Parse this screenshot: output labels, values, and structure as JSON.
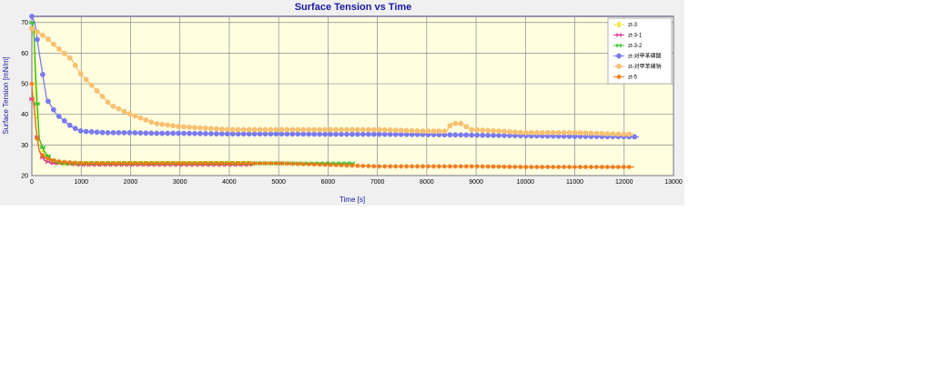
{
  "chart_data": {
    "type": "line",
    "title": "Surface Tension vs Time",
    "xlabel": "Time [s]",
    "ylabel": "Surface Tension [mN/m]",
    "xlim": [
      0,
      13000
    ],
    "ylim": [
      20,
      72
    ],
    "x_ticks": [
      0,
      1000,
      2000,
      3000,
      4000,
      5000,
      6000,
      7000,
      8000,
      9000,
      10000,
      11000,
      12000,
      13000
    ],
    "y_ticks": [
      20,
      30,
      40,
      50,
      60,
      70
    ],
    "grid": true,
    "legend_position": "top-right",
    "series": [
      {
        "name": "zt-3",
        "color": "#e8e020",
        "marker": "hourglass",
        "x": [
          0,
          40,
          80,
          150,
          250,
          400,
          600,
          1000,
          1500,
          2000,
          2500,
          3000,
          3500,
          4000,
          4500
        ],
        "y": [
          68,
          66,
          45,
          32,
          27,
          25,
          24,
          24,
          24,
          24,
          24,
          24,
          24,
          24,
          24
        ]
      },
      {
        "name": "zt-3-1",
        "color": "#e03090",
        "marker": "bowtie",
        "x": [
          0,
          40,
          80,
          150,
          250,
          400,
          600,
          1000,
          1500,
          2000,
          2500,
          3000,
          3500,
          4000,
          4500
        ],
        "y": [
          45,
          44,
          36,
          28,
          25,
          24,
          24,
          23.5,
          23.5,
          23.5,
          23.5,
          23.5,
          23.5,
          23.5,
          23.5
        ]
      },
      {
        "name": "zt-3-2",
        "color": "#30c020",
        "marker": "bowtie",
        "x": [
          0,
          40,
          80,
          150,
          250,
          400,
          600,
          1000,
          2000,
          3000,
          4000,
          5000,
          6000,
          6500
        ],
        "y": [
          70,
          68,
          52,
          32,
          28,
          25,
          24,
          24,
          24,
          24,
          24,
          24,
          24,
          24
        ]
      },
      {
        "name": "zt-对甲苯磺酸",
        "color": "#7a7af0",
        "marker": "circle",
        "x": [
          0,
          60,
          150,
          300,
          500,
          800,
          1000,
          1500,
          2000,
          2500,
          3000,
          4000,
          5000,
          6000,
          7000,
          8000,
          8500,
          9000,
          10000,
          11000,
          12000,
          12300
        ],
        "y": [
          72,
          70,
          60,
          45,
          40,
          36,
          34.5,
          34,
          34,
          33.8,
          33.8,
          33.6,
          33.6,
          33.5,
          33.5,
          33.4,
          33.3,
          33.2,
          33,
          32.8,
          32.7,
          32.6
        ]
      },
      {
        "name": "zt-对甲苯磺钠",
        "color": "#f8c070",
        "marker": "circle",
        "x": [
          0,
          100,
          300,
          500,
          800,
          1000,
          1300,
          1600,
          2000,
          2500,
          3000,
          4000,
          5000,
          6000,
          7000,
          8000,
          8400,
          8500,
          8700,
          8900,
          9500,
          10000,
          11000,
          12000,
          12200
        ],
        "y": [
          68,
          67,
          65,
          62,
          58,
          53,
          48,
          43,
          40,
          37,
          36,
          35,
          35,
          35,
          35,
          34.5,
          34.5,
          37,
          37,
          35,
          34.5,
          34,
          34,
          33.5,
          33.5
        ]
      },
      {
        "name": "zt-5",
        "color": "#f07818",
        "marker": "star",
        "x": [
          0,
          30,
          60,
          100,
          150,
          250,
          400,
          600,
          1000,
          1500,
          2000,
          3000,
          4000,
          5000,
          6000,
          7000,
          8000,
          9000,
          10000,
          11000,
          12000,
          12200
        ],
        "y": [
          50,
          44,
          40,
          33,
          28,
          26,
          25,
          24.5,
          24,
          24,
          24,
          24,
          24,
          24,
          23.5,
          23,
          23,
          23,
          22.8,
          22.8,
          22.8,
          22.8
        ]
      }
    ]
  }
}
